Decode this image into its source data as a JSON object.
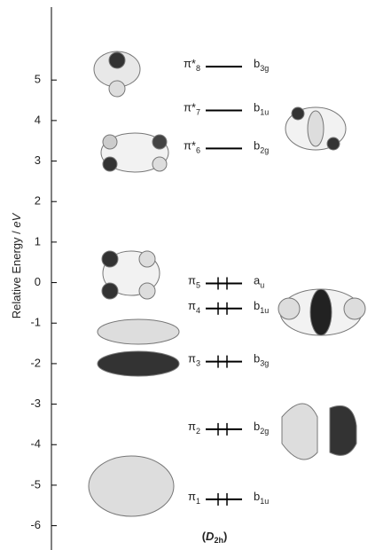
{
  "chart_data": {
    "type": "energy-level",
    "y_label": {
      "text": "Relative Energy / ",
      "italic": "eV"
    },
    "footer": {
      "open": "(",
      "symbol": "D",
      "sub": "2h",
      "close": ")"
    },
    "ylim": [
      -6.6,
      6.8
    ],
    "yticks": [
      -6,
      -5,
      -4,
      -3,
      -2,
      -1,
      0,
      1,
      2,
      3,
      4,
      5
    ],
    "color": "#000000",
    "levels": [
      {
        "label": "π*",
        "label_sub": "8",
        "symmetry": "b",
        "symmetry_sub": "3g",
        "energy": 5.33,
        "occupied": false
      },
      {
        "label": "π*",
        "label_sub": "7",
        "symmetry": "b",
        "symmetry_sub": "1u",
        "energy": 4.25,
        "occupied": false
      },
      {
        "label": "π*",
        "label_sub": "6",
        "symmetry": "b",
        "symmetry_sub": "2g",
        "energy": 3.31,
        "occupied": false
      },
      {
        "label": "π",
        "label_sub": "5",
        "symmetry": "a",
        "symmetry_sub": "u",
        "energy": -0.02,
        "occupied": true
      },
      {
        "label": "π",
        "label_sub": "4",
        "symmetry": "b",
        "symmetry_sub": "1u",
        "energy": -0.64,
        "occupied": true
      },
      {
        "label": "π",
        "label_sub": "3",
        "symmetry": "b",
        "symmetry_sub": "3g",
        "energy": -1.95,
        "occupied": true
      },
      {
        "label": "π",
        "label_sub": "2",
        "symmetry": "b",
        "symmetry_sub": "2g",
        "energy": -3.62,
        "occupied": true
      },
      {
        "label": "π",
        "label_sub": "1",
        "symmetry": "b",
        "symmetry_sub": "1u",
        "energy": -5.35,
        "occupied": true
      }
    ]
  }
}
